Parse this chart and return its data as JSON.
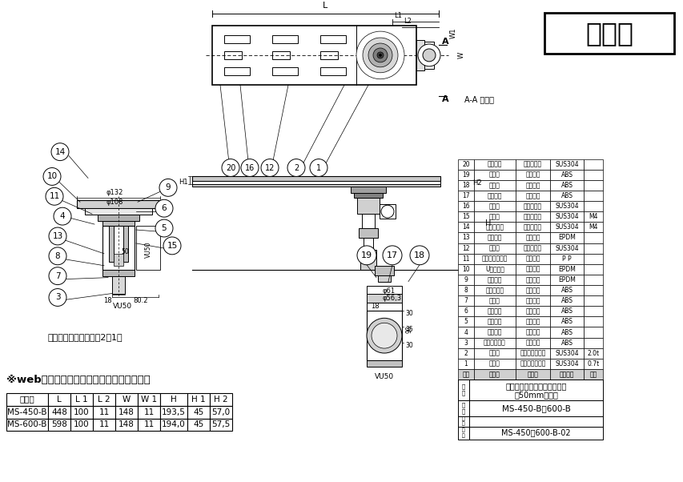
{
  "bg_color": "#ffffff",
  "title_box_text": "参考図",
  "section_label": "A-A 断面図",
  "detail_label": "偏芯トラップ詳細図（2：1）",
  "note_text": "※web図面の為、等縮尺ではございません。",
  "table_headers": [
    "品　番",
    "L",
    "L 1",
    "L 2",
    "W",
    "W 1",
    "H",
    "H 1",
    "H 2"
  ],
  "table_rows": [
    [
      "MS-450-B",
      "448",
      "100",
      "11",
      "148",
      "11",
      "193,5",
      "45",
      "57,0"
    ],
    [
      "MS-600-B",
      "598",
      "100",
      "11",
      "148",
      "11",
      "194,0",
      "45",
      "57,5"
    ]
  ],
  "parts_rows": [
    [
      "20",
      "アンカー",
      "ステンレス",
      "SUS304",
      ""
    ],
    [
      "19",
      "座　桜",
      "合成樹脂",
      "ABS",
      ""
    ],
    [
      "18",
      "構　桜",
      "合成樹脂",
      "ABS",
      ""
    ],
    [
      "17",
      "偏芯推手",
      "合成樹脂",
      "ABS",
      ""
    ],
    [
      "16",
      "取　手",
      "ステンレス",
      "SUS304",
      ""
    ],
    [
      "15",
      "ナット",
      "ステンレス",
      "SUS304",
      "M4"
    ],
    [
      "14",
      "トラスネジ",
      "ステンレス",
      "SUS304",
      "M4"
    ],
    [
      "13",
      "防水ゴム",
      "合成ゴム",
      "EPDM",
      ""
    ],
    [
      "12",
      "目　皿",
      "ステンレス",
      "SUS304",
      ""
    ],
    [
      "11",
      "スペリバッキン",
      "合成樹脂",
      "P P",
      ""
    ],
    [
      "10",
      "Uパッキン",
      "合成ゴム",
      "EPDM",
      ""
    ],
    [
      "9",
      "防臭ゴム",
      "合成ゴム",
      "EPDM",
      ""
    ],
    [
      "8",
      "防臭パイプ",
      "合成樹脂",
      "ABS",
      ""
    ],
    [
      "7",
      "ワ　ン",
      "合成樹脂",
      "ABS",
      ""
    ],
    [
      "6",
      "ロクネジ",
      "合成樹脂",
      "ABS",
      ""
    ],
    [
      "5",
      "アイドー",
      "合成樹脂",
      "ABS",
      ""
    ],
    [
      "4",
      "フランジ",
      "合成樹脂",
      "ABS",
      ""
    ],
    [
      "3",
      "トラップ本体",
      "合成樹脂",
      "ABS",
      ""
    ],
    [
      "2",
      "フ　タ",
      "ステンレス銅板",
      "SUS304",
      "2.0t"
    ],
    [
      "1",
      "本　体",
      "ステンレス銅板",
      "SUS304",
      "0.7t"
    ]
  ],
  "parts_header": [
    "番号",
    "部品名",
    "材質名",
    "材質記号",
    "備考"
  ],
  "product_name1": "偏芯トラップ付排水ユニット",
  "product_name2": "幁50mmタイプ",
  "product_number": "MS-450-B・600-B",
  "drawing_number": "MS-450・600-B-02"
}
